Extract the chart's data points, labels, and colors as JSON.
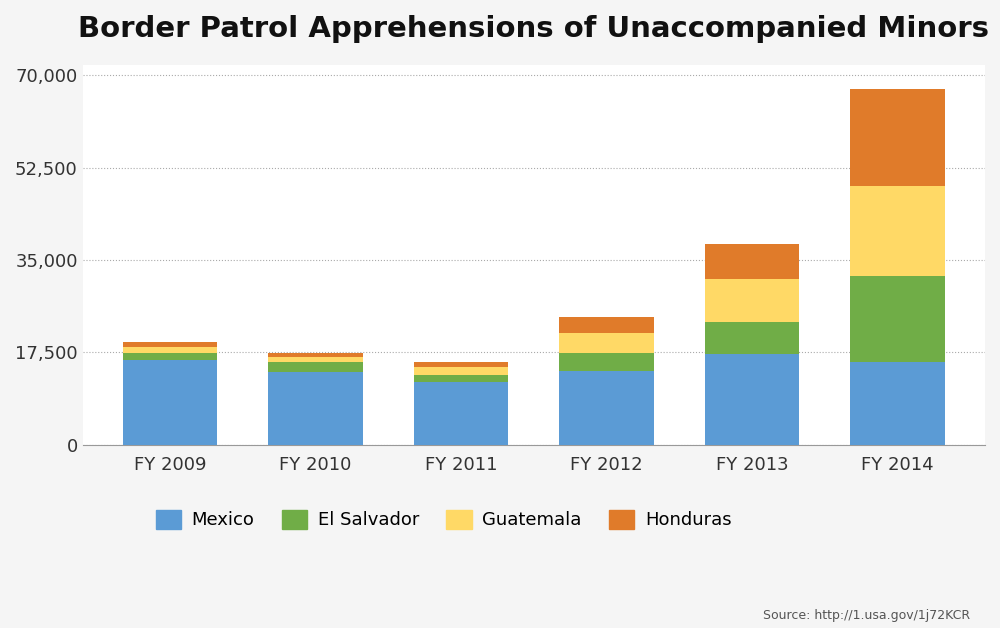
{
  "title": "Border Patrol Apprehensions of Unaccompanied Minors",
  "years": [
    "FY 2009",
    "FY 2010",
    "FY 2011",
    "FY 2012",
    "FY 2013",
    "FY 2014"
  ],
  "mexico": [
    16114,
    13724,
    11768,
    13974,
    17240,
    15634
  ],
  "el_salvador": [
    1221,
    1910,
    1394,
    3314,
    5990,
    16404
  ],
  "guatemala": [
    1115,
    1028,
    1565,
    3835,
    8068,
    17057
  ],
  "honduras": [
    968,
    690,
    974,
    2997,
    6747,
    18244
  ],
  "colors": {
    "mexico": "#5b9bd5",
    "el_salvador": "#70ad47",
    "guatemala": "#ffd966",
    "honduras": "#e07b2a"
  },
  "yticks": [
    0,
    17500,
    35000,
    52500,
    70000
  ],
  "ytick_labels": [
    "0",
    "17,500",
    "35,000",
    "52,500",
    "70,000"
  ],
  "ylim": [
    0,
    72000
  ],
  "legend_labels": [
    "Mexico",
    "El Salvador",
    "Guatemala",
    "Honduras"
  ],
  "source_text": "Source: http://1.usa.gov/1j72KCR",
  "background_color": "#f5f5f5",
  "title_fontsize": 21,
  "axis_fontsize": 13,
  "legend_fontsize": 13
}
